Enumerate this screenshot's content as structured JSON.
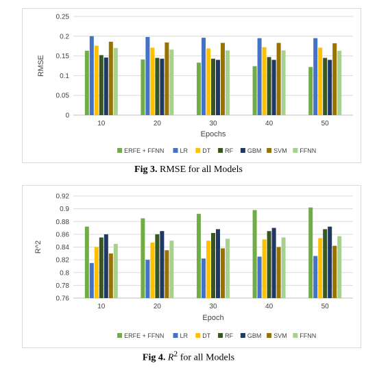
{
  "chart_data": [
    {
      "type": "bar",
      "title": "",
      "xlabel": "Epochs",
      "ylabel": "RMSE",
      "ylim": [
        0,
        0.25
      ],
      "yticks": [
        "0",
        "0.05",
        "0.1",
        "0.15",
        "0.2",
        "0.25"
      ],
      "ytick_values": [
        0,
        0.05,
        0.1,
        0.15,
        0.2,
        0.25
      ],
      "grid": true,
      "legend_position": "bottom",
      "categories": [
        "10",
        "20",
        "30",
        "40",
        "50"
      ],
      "series": [
        {
          "name": "ERFE + FFNN",
          "color": "#70ad47",
          "values": [
            0.163,
            0.141,
            0.133,
            0.124,
            0.122
          ]
        },
        {
          "name": "LR",
          "color": "#4472c4",
          "values": [
            0.2,
            0.198,
            0.196,
            0.195,
            0.195
          ]
        },
        {
          "name": "DT",
          "color": "#ffc000",
          "values": [
            0.176,
            0.171,
            0.169,
            0.172,
            0.171
          ]
        },
        {
          "name": "RF",
          "color": "#375623",
          "values": [
            0.152,
            0.145,
            0.143,
            0.147,
            0.145
          ]
        },
        {
          "name": "GBM",
          "color": "#203864",
          "values": [
            0.146,
            0.143,
            0.14,
            0.14,
            0.14
          ]
        },
        {
          "name": "SVM",
          "color": "#997300",
          "values": [
            0.186,
            0.184,
            0.183,
            0.183,
            0.182
          ]
        },
        {
          "name": "FFNN",
          "color": "#a9d18e",
          "values": [
            0.17,
            0.166,
            0.164,
            0.164,
            0.163
          ]
        }
      ]
    },
    {
      "type": "bar",
      "title": "",
      "xlabel": "Epoch",
      "ylabel": "R^2",
      "ylim": [
        0.76,
        0.92
      ],
      "yticks": [
        "0.76",
        "0.78",
        "0.8",
        "0.82",
        "0.84",
        "0.86",
        "0.88",
        "0.9",
        "0.92"
      ],
      "ytick_values": [
        0.76,
        0.78,
        0.8,
        0.82,
        0.84,
        0.86,
        0.88,
        0.9,
        0.92
      ],
      "grid": true,
      "legend_position": "bottom",
      "categories": [
        "10",
        "20",
        "30",
        "40",
        "50"
      ],
      "series": [
        {
          "name": "ERFE + FFNN",
          "color": "#70ad47",
          "values": [
            0.872,
            0.885,
            0.892,
            0.898,
            0.902
          ]
        },
        {
          "name": "LR",
          "color": "#4472c4",
          "values": [
            0.815,
            0.82,
            0.822,
            0.825,
            0.826
          ]
        },
        {
          "name": "DT",
          "color": "#ffc000",
          "values": [
            0.84,
            0.847,
            0.85,
            0.852,
            0.854
          ]
        },
        {
          "name": "RF",
          "color": "#375623",
          "values": [
            0.855,
            0.86,
            0.862,
            0.865,
            0.868
          ]
        },
        {
          "name": "GBM",
          "color": "#203864",
          "values": [
            0.86,
            0.865,
            0.868,
            0.87,
            0.872
          ]
        },
        {
          "name": "SVM",
          "color": "#997300",
          "values": [
            0.83,
            0.835,
            0.838,
            0.84,
            0.842
          ]
        },
        {
          "name": "FFNN",
          "color": "#a9d18e",
          "values": [
            0.845,
            0.85,
            0.853,
            0.855,
            0.857
          ]
        }
      ]
    }
  ],
  "captions": {
    "fig3": {
      "bold": "Fig 3.",
      "text": " RMSE for all Models"
    },
    "fig4": {
      "bold": "Fig 4.",
      "math": "R",
      "sup": "2",
      "text": " for all Models"
    }
  }
}
